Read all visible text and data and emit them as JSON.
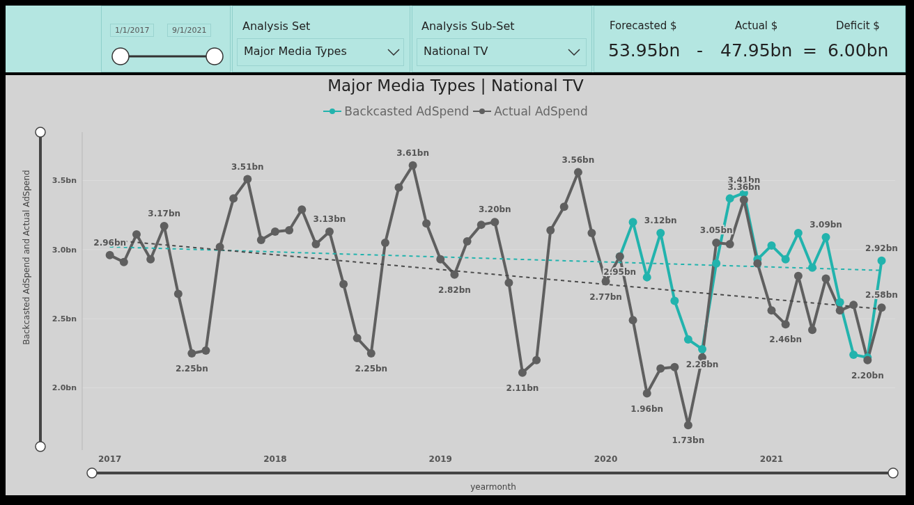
{
  "chart_data": {
    "type": "line",
    "title": "Major Media Types | National TV",
    "xlabel": "yearmonth",
    "ylabel": "Backcasted AdSpend and Actual AdSpend",
    "annotations": [
      "1/1/2017",
      "9/1/2021",
      "Analysis Set",
      "Major Media Types",
      "Analysis Sub-Set",
      "National TV",
      "Forecasted $",
      "Actual $",
      "Deficit $",
      "53.95bn",
      "-",
      "47.95bn",
      "=",
      "6.00bn"
    ],
    "x": [
      "2017-01",
      "2017-02",
      "2017-03",
      "2017-04",
      "2017-05",
      "2017-06",
      "2017-07",
      "2017-08",
      "2017-09",
      "2017-10",
      "2017-11",
      "2017-12",
      "2018-01",
      "2018-02",
      "2018-03",
      "2018-04",
      "2018-05",
      "2018-06",
      "2018-07",
      "2018-08",
      "2018-09",
      "2018-10",
      "2018-11",
      "2018-12",
      "2019-01",
      "2019-02",
      "2019-03",
      "2019-04",
      "2019-05",
      "2019-06",
      "2019-07",
      "2019-08",
      "2019-09",
      "2019-10",
      "2019-11",
      "2019-12",
      "2020-01",
      "2020-02",
      "2020-03",
      "2020-04",
      "2020-05",
      "2020-06",
      "2020-07",
      "2020-08",
      "2020-09",
      "2020-10",
      "2020-11",
      "2020-12",
      "2021-01",
      "2021-02",
      "2021-03",
      "2021-04",
      "2021-05",
      "2021-06",
      "2021-07",
      "2021-08",
      "2021-09"
    ],
    "series": [
      {
        "name": "Backcasted AdSpend",
        "color": "#22b3ad",
        "values": [
          null,
          null,
          null,
          null,
          null,
          null,
          null,
          null,
          null,
          null,
          null,
          null,
          null,
          null,
          null,
          null,
          null,
          null,
          null,
          null,
          null,
          null,
          null,
          null,
          null,
          null,
          null,
          null,
          null,
          null,
          null,
          null,
          null,
          null,
          null,
          null,
          null,
          2.95,
          3.2,
          2.8,
          3.12,
          2.63,
          2.35,
          2.28,
          2.9,
          3.37,
          3.41,
          2.93,
          3.03,
          2.93,
          3.12,
          2.87,
          3.09,
          2.62,
          2.24,
          2.22,
          2.92
        ],
        "value_labels": [
          null,
          null,
          null,
          null,
          null,
          null,
          null,
          null,
          null,
          null,
          null,
          null,
          null,
          null,
          null,
          null,
          null,
          null,
          null,
          null,
          null,
          null,
          null,
          null,
          null,
          null,
          null,
          null,
          null,
          null,
          null,
          null,
          null,
          null,
          null,
          null,
          null,
          "2.95bn",
          null,
          null,
          "3.12bn",
          null,
          null,
          "2.28bn",
          null,
          null,
          "3.41bn",
          null,
          null,
          null,
          null,
          null,
          "3.09bn",
          null,
          null,
          null,
          "2.92bn"
        ]
      },
      {
        "name": "Actual AdSpend",
        "color": "#5f5f5f",
        "values": [
          2.96,
          2.91,
          3.11,
          2.93,
          3.17,
          2.68,
          2.25,
          2.27,
          3.02,
          3.37,
          3.51,
          3.07,
          3.13,
          3.14,
          3.29,
          3.04,
          3.13,
          2.75,
          2.36,
          2.25,
          3.05,
          3.45,
          3.61,
          3.19,
          2.93,
          2.82,
          3.06,
          3.18,
          3.2,
          2.76,
          2.11,
          2.2,
          3.14,
          3.31,
          3.56,
          3.12,
          2.77,
          2.95,
          2.49,
          1.96,
          2.14,
          2.15,
          1.73,
          2.22,
          3.05,
          3.04,
          3.36,
          2.9,
          2.56,
          2.46,
          2.81,
          2.42,
          2.79,
          2.56,
          2.6,
          2.2,
          2.58
        ],
        "value_labels": [
          "2.96bn",
          null,
          null,
          null,
          "3.17bn",
          null,
          "2.25bn",
          null,
          null,
          null,
          "3.51bn",
          null,
          null,
          null,
          null,
          null,
          "3.13bn",
          null,
          null,
          "2.25bn",
          null,
          null,
          "3.61bn",
          null,
          null,
          "2.82bn",
          null,
          null,
          "3.20bn",
          null,
          "2.11bn",
          null,
          null,
          null,
          "3.56bn",
          null,
          "2.77bn",
          null,
          null,
          "1.96bn",
          null,
          null,
          "1.73bn",
          null,
          "3.05bn",
          null,
          "3.36bn",
          null,
          null,
          "2.46bn",
          null,
          null,
          null,
          null,
          null,
          "2.20bn",
          "2.58bn"
        ]
      },
      {
        "type": "line",
        "color": "#22b3ad",
        "x": [
          "2017-01",
          "2021-09"
        ],
        "values": [
          3.02,
          2.85
        ],
        "line_style": "dashed",
        "marker": "none"
      },
      {
        "type": "line",
        "color": "#4a4a4a",
        "x": [
          "2017-01",
          "2021-09"
        ],
        "values": [
          3.07,
          2.57
        ],
        "line_style": "dashed",
        "marker": "none"
      }
    ],
    "marker": "circle",
    "line_style": "solid",
    "xlim": [
      "2016-11",
      "2021-10"
    ],
    "xticks": [
      "2017",
      "2018",
      "2019",
      "2020",
      "2021"
    ],
    "ylim": [
      1.55,
      3.85
    ],
    "yticks": [
      {
        "value": 2,
        "label": "2.0bn"
      },
      {
        "value": 2.5,
        "label": "2.5bn"
      },
      {
        "value": 3,
        "label": "3.0bn"
      },
      {
        "value": 3.5,
        "label": "3.5bn"
      }
    ],
    "grid": "y",
    "legend": "top"
  }
}
